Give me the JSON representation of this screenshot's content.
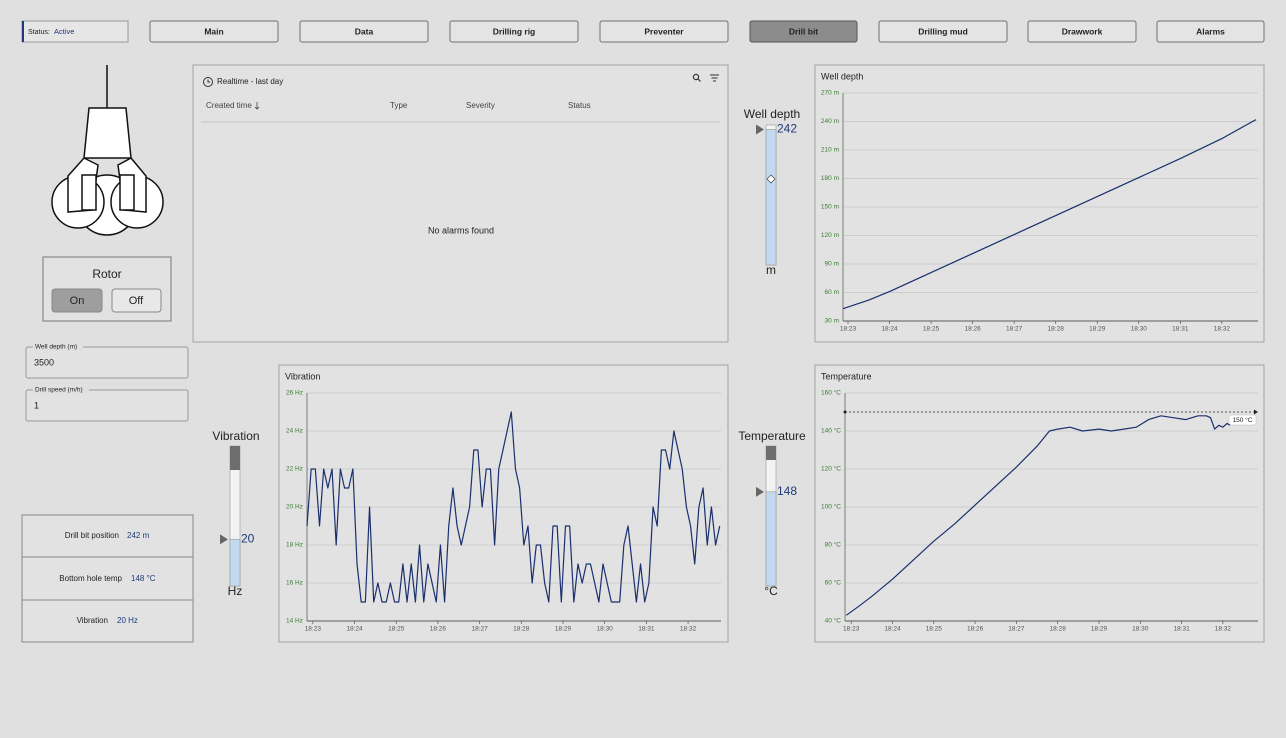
{
  "status": {
    "label": "Status:",
    "value": "Active"
  },
  "nav": [
    "Main",
    "Data",
    "Drilling rig",
    "Preventer",
    "Drill bit",
    "Drilling mud",
    "Drawwork",
    "Alarms"
  ],
  "rotor": {
    "title": "Rotor",
    "on": "On",
    "off": "Off"
  },
  "inputs": [
    {
      "label": "Well depth (m)",
      "value": "3500"
    },
    {
      "label": "Drill speed (m/h)",
      "value": "1"
    }
  ],
  "info": [
    {
      "label": "Drill bit position",
      "value": "242 m"
    },
    {
      "label": "Bottom hole temp",
      "value": "148 °C"
    },
    {
      "label": "Vibration",
      "value": "20 Hz"
    }
  ],
  "alarms": {
    "header": "Realtime - last day",
    "columns": [
      "Created time",
      "Type",
      "Severity",
      "Status"
    ],
    "empty": "No alarms found"
  },
  "gauges": [
    {
      "title": "Well depth",
      "value": 242,
      "unit": "m",
      "range": [
        0,
        250
      ]
    },
    {
      "title": "Vibration",
      "value": 20,
      "unit": "Hz",
      "range": [
        0,
        60
      ]
    },
    {
      "title": "Temperature",
      "value": 148,
      "unit": "°C",
      "range": [
        0,
        220
      ]
    }
  ],
  "chart_data": [
    {
      "type": "line",
      "title": "Well depth",
      "color": "#1a2f6e",
      "grid": true,
      "x": [
        1102.88,
        1103.5,
        1104,
        1105,
        1106,
        1107,
        1108,
        1109,
        1110,
        1111,
        1112,
        1112.82
      ],
      "values": [
        43,
        52,
        61,
        81,
        101,
        121,
        141,
        161,
        181,
        201,
        222,
        242
      ],
      "xlim": [
        1102.88,
        1112.87
      ],
      "ylim": [
        30,
        270
      ],
      "xticks": [
        {
          "value": 1103,
          "label": "18:23"
        },
        {
          "value": 1104,
          "label": "18:24"
        },
        {
          "value": 1105,
          "label": "18:25"
        },
        {
          "value": 1106,
          "label": "18:26"
        },
        {
          "value": 1107,
          "label": "18:27"
        },
        {
          "value": 1108,
          "label": "18:28"
        },
        {
          "value": 1109,
          "label": "18:29"
        },
        {
          "value": 1110,
          "label": "18:30"
        },
        {
          "value": 1111,
          "label": "18:31"
        },
        {
          "value": 1112,
          "label": "18:32"
        }
      ],
      "yticks": [
        {
          "value": 30,
          "label": "30 m"
        },
        {
          "value": 60,
          "label": "60 m"
        },
        {
          "value": 90,
          "label": "90 m"
        },
        {
          "value": 120,
          "label": "120 m"
        },
        {
          "value": 150,
          "label": "150 m"
        },
        {
          "value": 180,
          "label": "180 m"
        },
        {
          "value": 210,
          "label": "210 m"
        },
        {
          "value": 240,
          "label": "240 m"
        },
        {
          "value": 270,
          "label": "270 m"
        }
      ]
    },
    {
      "type": "line",
      "title": "Vibration",
      "color": "#1a2f6e",
      "grid": true,
      "x": [
        1102.86,
        1102.96,
        1103.06,
        1103.16,
        1103.26,
        1103.36,
        1103.46,
        1103.56,
        1103.66,
        1103.76,
        1103.86,
        1103.96,
        1104.06,
        1104.16,
        1104.26,
        1104.36,
        1104.46,
        1104.56,
        1104.66,
        1104.76,
        1104.86,
        1104.96,
        1105.06,
        1105.16,
        1105.26,
        1105.36,
        1105.46,
        1105.56,
        1105.66,
        1105.76,
        1105.86,
        1105.96,
        1106.06,
        1106.16,
        1106.26,
        1106.36,
        1106.46,
        1106.56,
        1106.66,
        1106.76,
        1106.86,
        1106.96,
        1107.06,
        1107.16,
        1107.26,
        1107.36,
        1107.46,
        1107.56,
        1107.66,
        1107.76,
        1107.86,
        1107.96,
        1108.06,
        1108.16,
        1108.26,
        1108.36,
        1108.46,
        1108.56,
        1108.66,
        1108.76,
        1108.86,
        1108.96,
        1109.06,
        1109.16,
        1109.26,
        1109.36,
        1109.46,
        1109.56,
        1109.66,
        1109.76,
        1109.86,
        1109.96,
        1110.06,
        1110.16,
        1110.26,
        1110.36,
        1110.46,
        1110.56,
        1110.66,
        1110.76,
        1110.86,
        1110.96,
        1111.06,
        1111.16,
        1111.26,
        1111.36,
        1111.46,
        1111.56,
        1111.66,
        1111.76,
        1111.86,
        1111.96,
        1112.06,
        1112.16,
        1112.26,
        1112.36,
        1112.46,
        1112.56,
        1112.66,
        1112.76
      ],
      "values": [
        19,
        22,
        22,
        19,
        22,
        21,
        22,
        18,
        22,
        21,
        21,
        22,
        17,
        15,
        15,
        20,
        15,
        16,
        15,
        15,
        16,
        15,
        15,
        17,
        15,
        17,
        15,
        18,
        15,
        17,
        16,
        15,
        18,
        15,
        19,
        21,
        19,
        18,
        19,
        20,
        23,
        23,
        20,
        22,
        22,
        18,
        22,
        23,
        24,
        25,
        22,
        21,
        18,
        19,
        16,
        18,
        18,
        16,
        15,
        19,
        19,
        15,
        19,
        19,
        15,
        17,
        16,
        17,
        17,
        16,
        15,
        17,
        16,
        15,
        15,
        15,
        18,
        19,
        17,
        15,
        17,
        15,
        16,
        20,
        19,
        23,
        23,
        22,
        24,
        23,
        22,
        20,
        19,
        17,
        20,
        21,
        18,
        20,
        18,
        19
      ],
      "xlim": [
        1102.86,
        1112.79
      ],
      "ylim": [
        14,
        26
      ],
      "xticks": [
        {
          "value": 1103,
          "label": "18:23"
        },
        {
          "value": 1104,
          "label": "18:24"
        },
        {
          "value": 1105,
          "label": "18:25"
        },
        {
          "value": 1106,
          "label": "18:26"
        },
        {
          "value": 1107,
          "label": "18:27"
        },
        {
          "value": 1108,
          "label": "18:28"
        },
        {
          "value": 1109,
          "label": "18:29"
        },
        {
          "value": 1110,
          "label": "18:30"
        },
        {
          "value": 1111,
          "label": "18:31"
        },
        {
          "value": 1112,
          "label": "18:32"
        }
      ],
      "yticks": [
        {
          "value": 14,
          "label": "14 Hz"
        },
        {
          "value": 16,
          "label": "16 Hz"
        },
        {
          "value": 18,
          "label": "18 Hz"
        },
        {
          "value": 20,
          "label": "20 Hz"
        },
        {
          "value": 22,
          "label": "22 Hz"
        },
        {
          "value": 24,
          "label": "24 Hz"
        },
        {
          "value": 26,
          "label": "26 Hz"
        }
      ]
    },
    {
      "type": "line",
      "title": "Temperature",
      "color": "#1a2f6e",
      "grid": true,
      "x": [
        1102.88,
        1103.2,
        1103.5,
        1104,
        1104.5,
        1105,
        1105.5,
        1106,
        1106.5,
        1107,
        1107.5,
        1107.8,
        1108,
        1108.3,
        1108.6,
        1109,
        1109.3,
        1109.6,
        1109.9,
        1110.2,
        1110.5,
        1110.8,
        1111.1,
        1111.4,
        1111.6,
        1111.7,
        1111.8,
        1111.9,
        1112,
        1112.1,
        1112.17
      ],
      "values": [
        43,
        48,
        53,
        62,
        72,
        82,
        91,
        101,
        111,
        121,
        132,
        140,
        141,
        142,
        140,
        141,
        140,
        141,
        142,
        146,
        148,
        147,
        146,
        148,
        148,
        147,
        141,
        143,
        142,
        144,
        143
      ],
      "xlim": [
        1102.85,
        1112.85
      ],
      "ylim": [
        40,
        160
      ],
      "threshold": {
        "value": 150,
        "label": "150 °C"
      },
      "xticks": [
        {
          "value": 1103,
          "label": "18:23"
        },
        {
          "value": 1104,
          "label": "18:24"
        },
        {
          "value": 1105,
          "label": "18:25"
        },
        {
          "value": 1106,
          "label": "18:26"
        },
        {
          "value": 1107,
          "label": "18:27"
        },
        {
          "value": 1108,
          "label": "18:28"
        },
        {
          "value": 1109,
          "label": "18:29"
        },
        {
          "value": 1110,
          "label": "18:30"
        },
        {
          "value": 1111,
          "label": "18:31"
        },
        {
          "value": 1112,
          "label": "18:32"
        }
      ],
      "yticks": [
        {
          "value": 40,
          "label": "40 °C"
        },
        {
          "value": 60,
          "label": "60 °C"
        },
        {
          "value": 80,
          "label": "80 °C"
        },
        {
          "value": 100,
          "label": "100 °C"
        },
        {
          "value": 120,
          "label": "120 °C"
        },
        {
          "value": 140,
          "label": "140 °C"
        },
        {
          "value": 160,
          "label": "160 °C"
        }
      ]
    }
  ]
}
